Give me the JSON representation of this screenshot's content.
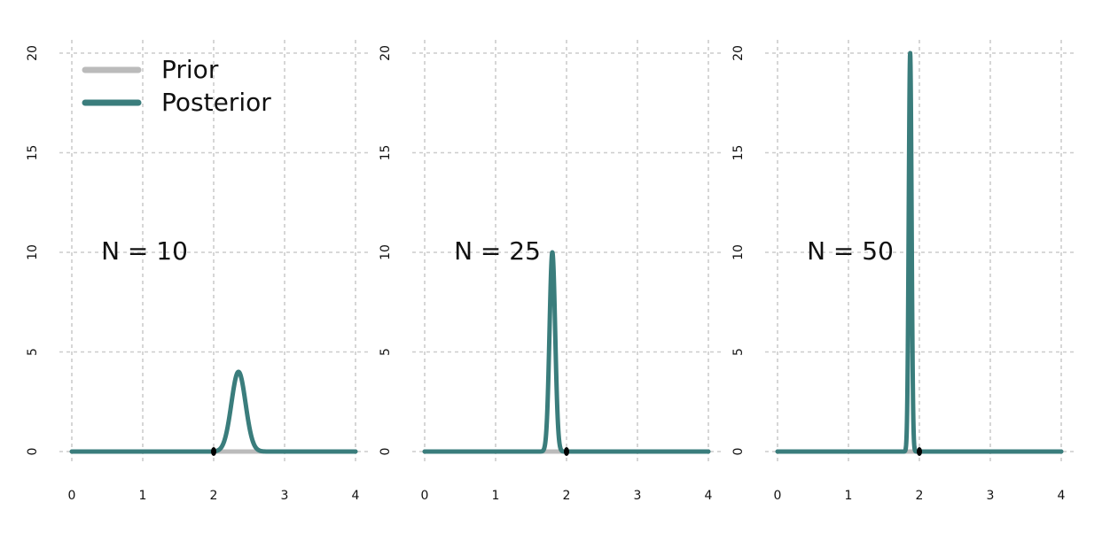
{
  "chart_data": [
    {
      "type": "line",
      "annotation": "N = 10",
      "xlim": [
        0,
        4
      ],
      "ylim": [
        0,
        20
      ],
      "xticks": [
        "0",
        "1",
        "2",
        "3",
        "4"
      ],
      "yticks": [
        "0",
        "5",
        "10",
        "15",
        "20"
      ],
      "grid": true,
      "legend_position": "top-left",
      "legend": [
        {
          "label": "Prior",
          "color": "#bbbbbb"
        },
        {
          "label": "Posterior",
          "color": "#3a7d7c"
        }
      ],
      "series": [
        {
          "name": "Prior",
          "color": "#bbbbbb",
          "x": [
            0,
            4
          ],
          "y": [
            0,
            0
          ]
        },
        {
          "name": "Posterior",
          "color": "#3a7d7c",
          "mean": 2.35,
          "peak": 4.0
        }
      ],
      "point": {
        "x": 2,
        "y": 0
      }
    },
    {
      "type": "line",
      "annotation": "N = 25",
      "xlim": [
        0,
        4
      ],
      "ylim": [
        0,
        20
      ],
      "xticks": [
        "0",
        "1",
        "2",
        "3",
        "4"
      ],
      "yticks": [
        "0",
        "5",
        "10",
        "15",
        "20"
      ],
      "grid": true,
      "series": [
        {
          "name": "Prior",
          "color": "#bbbbbb",
          "x": [
            0,
            4
          ],
          "y": [
            0,
            0
          ]
        },
        {
          "name": "Posterior",
          "color": "#3a7d7c",
          "mean": 1.8,
          "peak": 10.0
        }
      ],
      "point": {
        "x": 2,
        "y": 0
      }
    },
    {
      "type": "line",
      "annotation": "N = 50",
      "xlim": [
        0,
        4
      ],
      "ylim": [
        0,
        20
      ],
      "xticks": [
        "0",
        "1",
        "2",
        "3",
        "4"
      ],
      "yticks": [
        "0",
        "5",
        "10",
        "15",
        "20"
      ],
      "grid": true,
      "series": [
        {
          "name": "Prior",
          "color": "#bbbbbb",
          "x": [
            0,
            4
          ],
          "y": [
            0,
            0
          ]
        },
        {
          "name": "Posterior",
          "color": "#3a7d7c",
          "mean": 1.87,
          "peak": 20.0
        }
      ],
      "point": {
        "x": 2,
        "y": 0
      }
    }
  ]
}
